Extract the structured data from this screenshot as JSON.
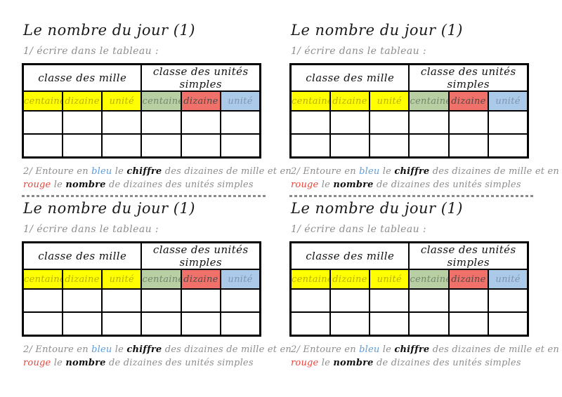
{
  "colors": {
    "yellow_bg": "#ffff00",
    "yellow_text": "#b9b000",
    "green_bg": "#b7cfa2",
    "green_text": "#76856d",
    "red_bg": "#f0716a",
    "red_text": "#4f4a48",
    "blue_bg": "#abc9e8",
    "blue_text": "#7e96b2",
    "instruction_gray": "#8d8d8d",
    "blue_word": "#5f9cd8",
    "red_word": "#e8443b"
  },
  "worksheet": {
    "title": "Le nombre du jour (1)",
    "step1": "1/ écrire dans le tableau :",
    "table": {
      "group_headers": [
        "classe des mille",
        "classe des unités simples"
      ],
      "columns": [
        {
          "label": "centaine",
          "bg": "#ffff00",
          "fg": "#b9b000"
        },
        {
          "label": "dizaine",
          "bg": "#ffff00",
          "fg": "#b9b000"
        },
        {
          "label": "unité",
          "bg": "#ffff00",
          "fg": "#b9b000"
        },
        {
          "label": "centaine",
          "bg": "#b7cfa2",
          "fg": "#76856d"
        },
        {
          "label": "dizaine",
          "bg": "#f0716a",
          "fg": "#4f4a48"
        },
        {
          "label": "unité",
          "bg": "#abc9e8",
          "fg": "#7e96b2"
        }
      ],
      "empty_row_count": 2
    },
    "step2": {
      "parts": [
        {
          "text": "2/ Entoure en "
        },
        {
          "text": "bleu"
        },
        {
          "text": " le "
        },
        {
          "text": "chiffre"
        },
        {
          "text": " des dizaines de mille et en "
        },
        {
          "text": "rouge"
        },
        {
          "text": " le "
        },
        {
          "text": "nombre"
        },
        {
          "text": " de dizaines des unités simples"
        }
      ]
    }
  }
}
